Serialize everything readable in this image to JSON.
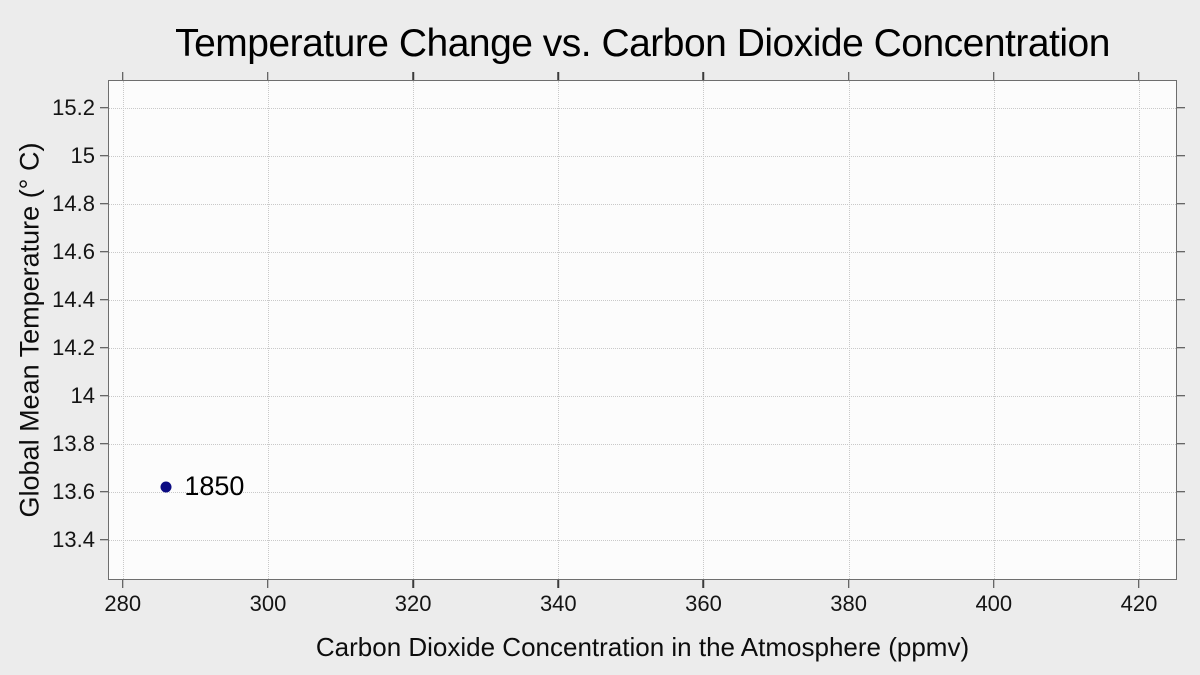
{
  "chart_data": {
    "type": "scatter",
    "title": "Temperature Change vs. Carbon Dioxide Concentration",
    "xlabel": "Carbon Dioxide Concentration in the Atmosphere (ppmv)",
    "ylabel": "Global Mean Temperature (° C)",
    "xlim": [
      278.1,
      425.1
    ],
    "ylim": [
      13.237,
      15.312
    ],
    "xticks": [
      280,
      300,
      320,
      340,
      360,
      380,
      400,
      420
    ],
    "yticks": [
      13.4,
      13.6,
      13.8,
      14,
      14.2,
      14.4,
      14.6,
      14.8,
      15,
      15.2
    ],
    "grid": true,
    "grid_style": "dotted",
    "legend": "none",
    "points": [
      {
        "x": 286,
        "y": 13.62,
        "label": "1850"
      }
    ]
  },
  "colors": {
    "background": "#ececec",
    "plot_background": "#fcfcfc",
    "grid": "#c9c9c9",
    "axis_frame": "#6e6e6e",
    "tick": "#3a3a3a",
    "text": "#0d0d0d",
    "point": "#0b0b82"
  }
}
